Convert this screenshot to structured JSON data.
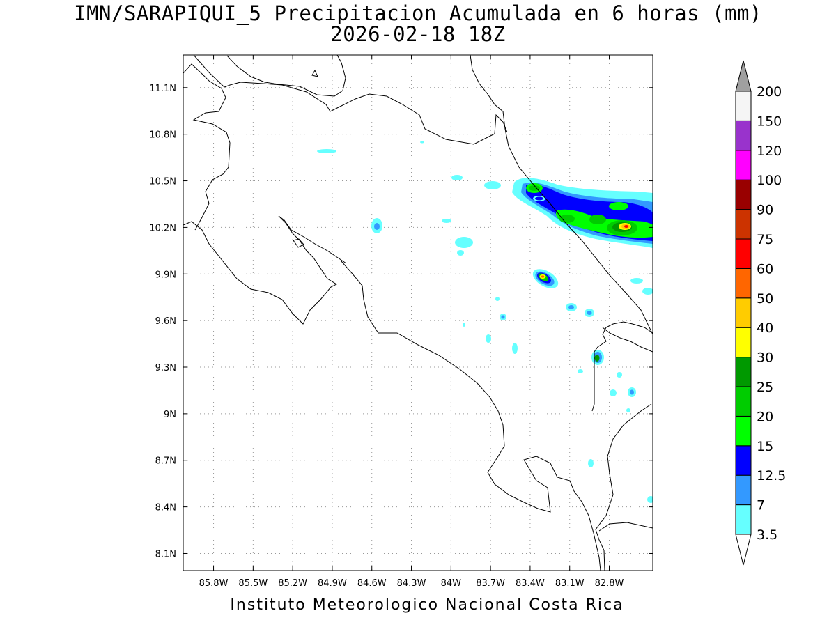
{
  "title_line1": "IMN/SARAPIQUI_5 Precipitacion Acumulada en 6 horas (mm)",
  "title_line2": "2026-02-18 18Z",
  "footer": "Instituto Meteorologico Nacional Costa Rica",
  "map": {
    "lon_range": [
      -86.03,
      -82.47
    ],
    "lat_range": [
      7.99,
      11.31
    ],
    "x_ticks": [
      "85.8W",
      "85.5W",
      "85.2W",
      "84.9W",
      "84.6W",
      "84.3W",
      "84W",
      "83.7W",
      "83.4W",
      "83.1W",
      "82.8W"
    ],
    "x_tick_values": [
      -85.8,
      -85.5,
      -85.2,
      -84.9,
      -84.6,
      -84.3,
      -84.0,
      -83.7,
      -83.4,
      -83.1,
      -82.8
    ],
    "y_ticks": [
      "11.1N",
      "10.8N",
      "10.5N",
      "10.2N",
      "9.9N",
      "9.6N",
      "9.3N",
      "9N",
      "8.7N",
      "8.4N",
      "8.1N"
    ],
    "y_tick_values": [
      11.1,
      10.8,
      10.5,
      10.2,
      9.9,
      9.6,
      9.3,
      9.0,
      8.7,
      8.4,
      8.1
    ],
    "gridlines": "dotted"
  },
  "colorbar": {
    "labels": [
      "3.5",
      "7",
      "12.5",
      "15",
      "20",
      "25",
      "30",
      "40",
      "50",
      "60",
      "75",
      "90",
      "100",
      "120",
      "150",
      "200"
    ],
    "colors": [
      "#66ffff",
      "#3399ff",
      "#0000ff",
      "#00ff00",
      "#00cc00",
      "#009900",
      "#ffff00",
      "#ffcc00",
      "#ff6600",
      "#ff0000",
      "#cc3300",
      "#990000",
      "#ff00ff",
      "#9933cc",
      "#f5f5f5"
    ],
    "top_arrow_color": "#a0a0a0",
    "bottom_arrow_color": "#ffffff"
  }
}
